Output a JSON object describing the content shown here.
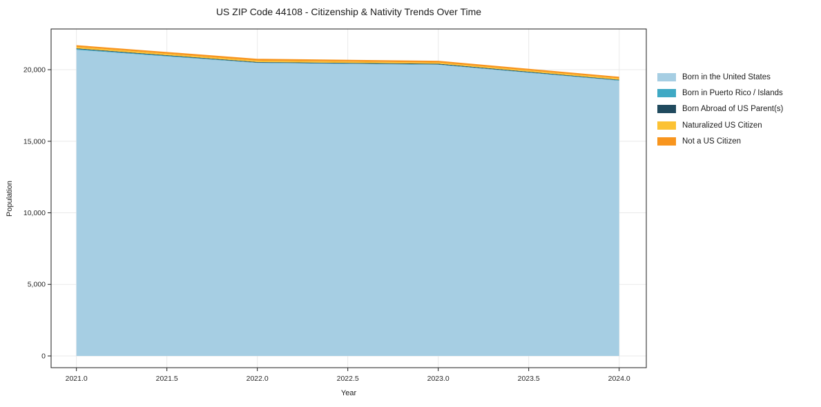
{
  "figure": {
    "title": "US ZIP Code 44108 - Citizenship & Nativity Trends Over Time"
  },
  "chart_data": {
    "type": "area",
    "stacked": true,
    "title": "US ZIP Code 44108 - Citizenship & Nativity Trends Over Time",
    "xlabel": "Year",
    "ylabel": "Population",
    "x": [
      2021,
      2022,
      2023,
      2024
    ],
    "series": [
      {
        "name": "Born in the United States",
        "color": "#a6cee3",
        "values": [
          21390,
          20470,
          20345,
          19230
        ]
      },
      {
        "name": "Born in Puerto Rico / Islands",
        "color": "#3fa9c4",
        "values": [
          55,
          30,
          25,
          35
        ]
      },
      {
        "name": "Born Abroad of US Parent(s)",
        "color": "#204a5e",
        "values": [
          45,
          35,
          45,
          35
        ]
      },
      {
        "name": "Naturalized US Citizen",
        "color": "#fcc234",
        "values": [
          105,
          100,
          90,
          95
        ]
      },
      {
        "name": "Not a US Citizen",
        "color": "#f8951e",
        "values": [
          115,
          130,
          120,
          110
        ]
      }
    ],
    "totals": [
      21710,
      20765,
      20625,
      19505
    ],
    "xlim": [
      2020.86,
      2024.15
    ],
    "ylim": [
      -820,
      22845
    ],
    "xticks": {
      "values": [
        2021.0,
        2021.5,
        2022.0,
        2022.5,
        2023.0,
        2023.5,
        2024.0
      ],
      "labels": [
        "2021.0",
        "2021.5",
        "2022.0",
        "2022.5",
        "2023.0",
        "2023.5",
        "2024.0"
      ]
    },
    "yticks": {
      "values": [
        0,
        5000,
        10000,
        15000,
        20000
      ],
      "labels": [
        "0",
        "5,000",
        "10,000",
        "15,000",
        "20,000"
      ]
    },
    "grid": true,
    "legend_position": "right"
  },
  "colors": {
    "background": "#ffffff",
    "grid": "#e9e9e9",
    "spine": "#1a1a1a",
    "tick": "#1a1a1a"
  }
}
